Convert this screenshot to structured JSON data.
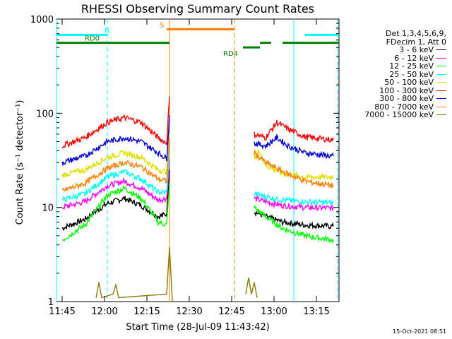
{
  "chart_data": {
    "type": "line",
    "title": "RHESSI Observing Summary Count Rates",
    "xlabel": "Start Time (28-Jul-09 11:43:42)",
    "ylabel": "Count Rate (s⁻¹ detector⁻¹)",
    "yscale": "log",
    "ylim": [
      1,
      1000
    ],
    "xlim_minutes_after_1143": [
      0,
      100
    ],
    "x_tick_labels": [
      "11:45",
      "12:00",
      "12:15",
      "12:30",
      "12:45",
      "13:00",
      "13:15"
    ],
    "y_tick_labels": [
      "1",
      "10",
      "100",
      "1000"
    ],
    "legend_header": [
      "Det 1,3,4,5,6,9,",
      "FDecim 1, Att 0"
    ],
    "series": [
      {
        "name": "3 - 6 keV",
        "color": "#000000",
        "segments": [
          [
            [
              2,
              6
            ],
            [
              10,
              7.5
            ],
            [
              18,
              11
            ],
            [
              24,
              12.5
            ],
            [
              30,
              10.5
            ],
            [
              36,
              8
            ],
            [
              39,
              8.5
            ],
            [
              40,
              25
            ]
          ],
          [
            [
              70,
              9
            ],
            [
              74,
              8
            ],
            [
              80,
              7
            ],
            [
              88,
              6.5
            ],
            [
              98,
              6.3
            ]
          ]
        ]
      },
      {
        "name": "6 - 12 keV",
        "color": "#ff00ff",
        "segments": [
          [
            [
              2,
              10
            ],
            [
              10,
              11.5
            ],
            [
              18,
              17
            ],
            [
              24,
              19
            ],
            [
              30,
              16
            ],
            [
              36,
              12
            ],
            [
              39,
              12.5
            ],
            [
              40,
              32
            ]
          ],
          [
            [
              70,
              12.5
            ],
            [
              74,
              11.5
            ],
            [
              80,
              10.5
            ],
            [
              88,
              10
            ],
            [
              98,
              9.8
            ]
          ]
        ]
      },
      {
        "name": "12 - 25 keV",
        "color": "#00ff00",
        "segments": [
          [
            [
              2,
              4.5
            ],
            [
              10,
              6.5
            ],
            [
              18,
              13.5
            ],
            [
              24,
              16
            ],
            [
              30,
              12.5
            ],
            [
              36,
              7
            ],
            [
              39,
              6.5
            ],
            [
              40,
              18
            ]
          ],
          [
            [
              70,
              10
            ],
            [
              74,
              8
            ],
            [
              80,
              6
            ],
            [
              88,
              5
            ],
            [
              98,
              4.5
            ]
          ]
        ]
      },
      {
        "name": "25 - 50 keV",
        "color": "#00ffff",
        "segments": [
          [
            [
              2,
              12
            ],
            [
              10,
              14
            ],
            [
              18,
              21
            ],
            [
              24,
              24
            ],
            [
              30,
              20
            ],
            [
              36,
              14.5
            ],
            [
              39,
              14.5
            ],
            [
              40,
              40
            ]
          ],
          [
            [
              70,
              14
            ],
            [
              74,
              13
            ],
            [
              80,
              12
            ],
            [
              88,
              11.5
            ],
            [
              98,
              11.2
            ]
          ]
        ]
      },
      {
        "name": "50 - 100 keV",
        "color": "#e0e000",
        "segments": [
          [
            [
              2,
              22
            ],
            [
              10,
              25
            ],
            [
              18,
              34
            ],
            [
              24,
              38
            ],
            [
              30,
              34
            ],
            [
              36,
              25
            ],
            [
              39,
              24
            ],
            [
              40,
              60
            ]
          ],
          [
            [
              70,
              34
            ],
            [
              72,
              40
            ],
            [
              74,
              28
            ],
            [
              80,
              23
            ],
            [
              88,
              21
            ],
            [
              98,
              21
            ]
          ]
        ]
      },
      {
        "name": "100 - 300 keV",
        "color": "#ff0000",
        "segments": [
          [
            [
              2,
              45
            ],
            [
              10,
              55
            ],
            [
              18,
              80
            ],
            [
              24,
              90
            ],
            [
              30,
              80
            ],
            [
              36,
              55
            ],
            [
              39,
              48
            ],
            [
              40,
              150
            ]
          ],
          [
            [
              70,
              60
            ],
            [
              74,
              55
            ],
            [
              78,
              80
            ],
            [
              82,
              68
            ],
            [
              88,
              56
            ],
            [
              98,
              52
            ]
          ]
        ]
      },
      {
        "name": "300 - 800 keV",
        "color": "#0000dd",
        "segments": [
          [
            [
              2,
              30
            ],
            [
              10,
              35
            ],
            [
              18,
              50
            ],
            [
              24,
              55
            ],
            [
              30,
              50
            ],
            [
              36,
              38
            ],
            [
              39,
              33
            ],
            [
              40,
              95
            ]
          ],
          [
            [
              70,
              48
            ],
            [
              74,
              45
            ],
            [
              78,
              55
            ],
            [
              82,
              45
            ],
            [
              88,
              38
            ],
            [
              98,
              35
            ]
          ]
        ]
      },
      {
        "name": "800 - 7000 keV",
        "color": "#ff8000",
        "segments": [
          [
            [
              2,
              15
            ],
            [
              10,
              18
            ],
            [
              18,
              26
            ],
            [
              24,
              30
            ],
            [
              30,
              27
            ],
            [
              36,
              20
            ],
            [
              39,
              19
            ],
            [
              40,
              55
            ]
          ],
          [
            [
              70,
              38
            ],
            [
              74,
              30
            ],
            [
              80,
              24
            ],
            [
              88,
              19
            ],
            [
              98,
              17
            ]
          ]
        ]
      },
      {
        "name": "7000 - 15000 keV",
        "color": "#8a7a00",
        "segments": [
          [
            [
              14,
              1.1
            ],
            [
              15,
              1.6
            ],
            [
              16,
              1.1
            ],
            [
              20,
              1.2
            ],
            [
              21,
              1.5
            ],
            [
              22,
              1.1
            ],
            [
              39,
              1.2
            ],
            [
              40,
              3.8
            ],
            [
              41,
              1.0
            ]
          ],
          [
            [
              67,
              1.2
            ],
            [
              68,
              1.8
            ],
            [
              69,
              1.2
            ],
            [
              70,
              1.6
            ],
            [
              71,
              1.1
            ]
          ]
        ]
      }
    ],
    "annotations": {
      "bands": [
        {
          "label": "N",
          "color": "#00ffff",
          "y": 680,
          "x_ranges": [
            [
              0,
              18
            ],
            [
              88,
              101
            ]
          ]
        },
        {
          "label": "S",
          "color": "#ff8000",
          "y": 780,
          "x_ranges": [
            [
              39,
              63
            ]
          ]
        },
        {
          "label": "RD4",
          "color": "#008000",
          "y": 500,
          "x_ranges": [
            [
              66,
              72
            ]
          ]
        },
        {
          "label": "RD0",
          "color": "#008000",
          "y": 560,
          "x_ranges": [
            [
              0,
              40
            ],
            [
              72,
              76
            ],
            [
              80,
              101
            ]
          ]
        }
      ],
      "lines": [
        {
          "color": "#00ffff",
          "dash": false,
          "x": 0
        },
        {
          "color": "#00ffff",
          "dash": true,
          "x": 18
        },
        {
          "color": "#ff8000",
          "dash": false,
          "x": 40
        },
        {
          "color": "#ff8000",
          "dash": true,
          "x": 63
        },
        {
          "color": "#00ffff",
          "dash": false,
          "x": 84
        },
        {
          "color": "#00ffff",
          "dash": true,
          "x": 99.5
        }
      ]
    },
    "grid": false,
    "legend_placement": "right",
    "footer_timestamp": "15-Oct-2021 08:51"
  }
}
